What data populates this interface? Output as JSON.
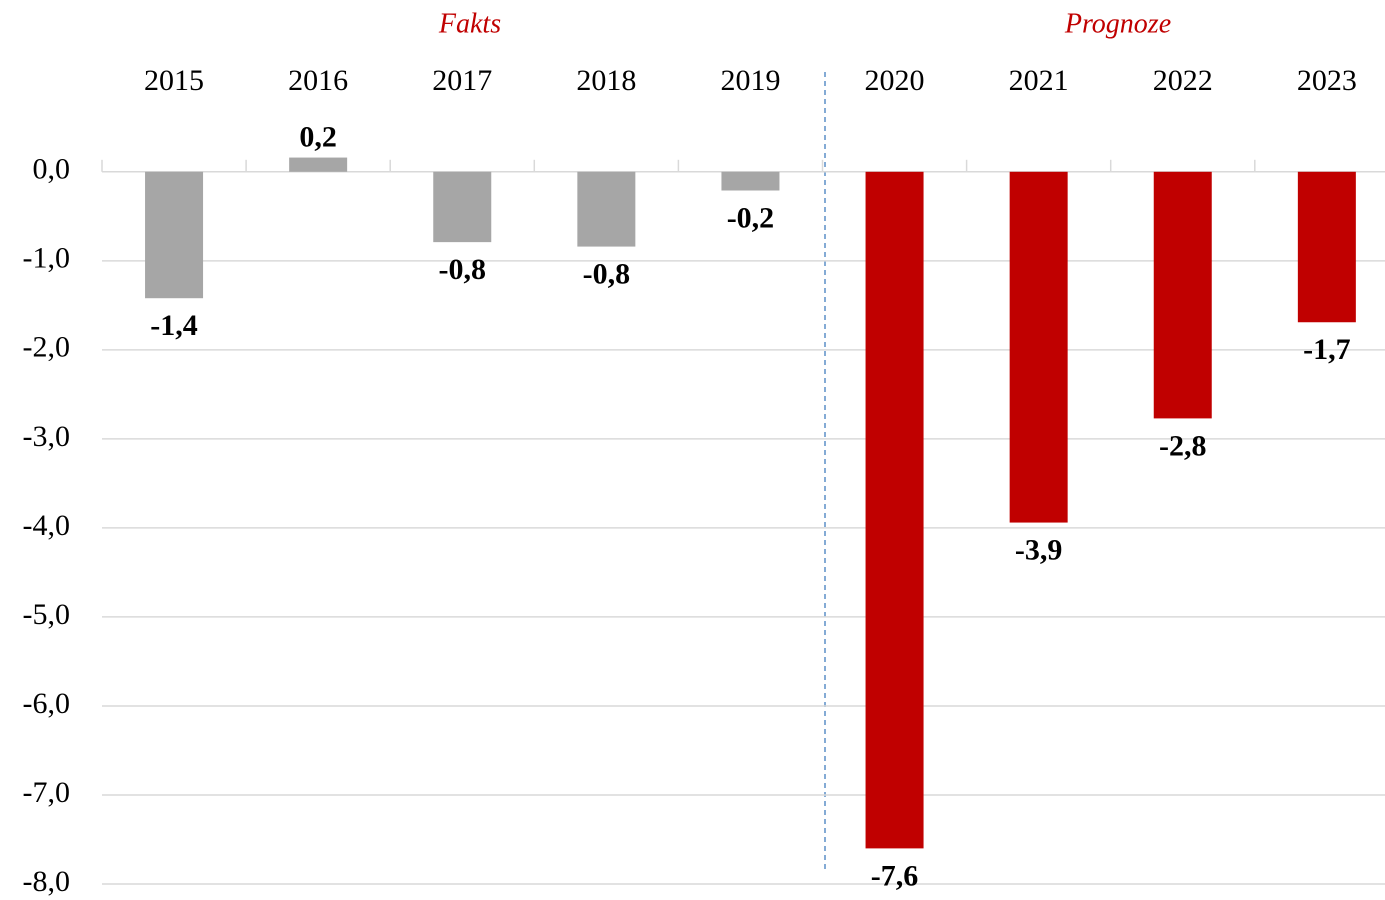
{
  "chart_data": {
    "type": "bar",
    "annotations": [
      "Fakts",
      "Prognoze"
    ],
    "categories": [
      "2015",
      "2016",
      "2017",
      "2018",
      "2019",
      "2020",
      "2021",
      "2022",
      "2023"
    ],
    "values": [
      -1.42,
      0.16,
      -0.79,
      -0.84,
      -0.21,
      -7.6,
      -3.94,
      -2.77,
      -1.69
    ],
    "value_labels": [
      "-1,4",
      "0,2",
      "-0,8",
      "-0,8",
      "-0,2",
      "-7,6",
      "-3,9",
      "-2,8",
      "-1,7"
    ],
    "colors": [
      "#a6a6a6",
      "#a6a6a6",
      "#a6a6a6",
      "#a6a6a6",
      "#a6a6a6",
      "#c00000",
      "#c00000",
      "#c00000",
      "#c00000"
    ],
    "ylim": [
      -8,
      0.2
    ],
    "yticks": [
      {
        "value": 0,
        "label": "0,0"
      },
      {
        "value": -1,
        "label": "-1,0"
      },
      {
        "value": -2,
        "label": "-2,0"
      },
      {
        "value": -3,
        "label": "-3,0"
      },
      {
        "value": -4,
        "label": "-4,0"
      },
      {
        "value": -5,
        "label": "-5,0"
      },
      {
        "value": -6,
        "label": "-6,0"
      },
      {
        "value": -7,
        "label": "-7,0"
      },
      {
        "value": -8,
        "label": "-8,0"
      }
    ],
    "grid": true
  }
}
